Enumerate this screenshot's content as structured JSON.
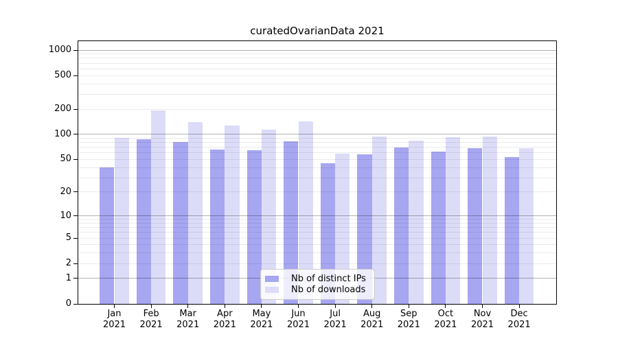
{
  "chart_data": {
    "type": "bar",
    "title": "curatedOvarianData 2021",
    "categories": [
      "Jan",
      "Feb",
      "Mar",
      "Apr",
      "May",
      "Jun",
      "Jul",
      "Aug",
      "Sep",
      "Oct",
      "Nov",
      "Dec"
    ],
    "year_label": "2021",
    "series": [
      {
        "name": "Nb of distinct IPs",
        "color": "#a6a6f1",
        "values": [
          40,
          87,
          81,
          66,
          65,
          83,
          45,
          58,
          70,
          62,
          68,
          53
        ]
      },
      {
        "name": "Nb of downloads",
        "color": "#dcdcf8",
        "values": [
          90,
          193,
          140,
          127,
          113,
          144,
          59,
          94,
          84,
          93,
          94,
          68
        ]
      }
    ],
    "y_scale": "log1p",
    "ylim": [
      0,
      1276
    ],
    "yticks": [
      0,
      1,
      2,
      5,
      10,
      20,
      50,
      100,
      200,
      500,
      1000
    ],
    "y_major_gridlines": [
      1,
      10,
      100,
      1000
    ],
    "grid": true,
    "legend_position": "lower-center",
    "xlabel": "",
    "ylabel": "",
    "colors": {
      "background": "#ffffff",
      "axis": "#000000",
      "text": "#000000",
      "major_grid": "rgba(0,0,0,0.30)",
      "minor_grid": "rgba(0,0,0,0.08)"
    }
  }
}
